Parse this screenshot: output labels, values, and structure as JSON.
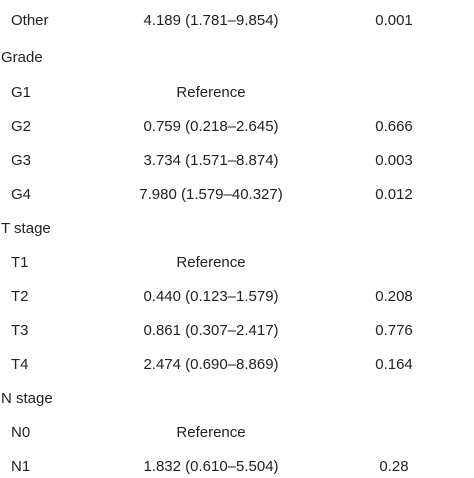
{
  "rows": [
    {
      "type": "item",
      "label": "Other",
      "or": "4.189 (1.781–9.854)",
      "p": "0.001"
    },
    {
      "type": "section",
      "label": "Grade"
    },
    {
      "type": "item",
      "label": "G1",
      "or": "Reference",
      "p": ""
    },
    {
      "type": "item",
      "label": "G2",
      "or": "0.759 (0.218–2.645)",
      "p": "0.666"
    },
    {
      "type": "item",
      "label": "G3",
      "or": "3.734 (1.571–8.874)",
      "p": "0.003"
    },
    {
      "type": "item",
      "label": "G4",
      "or": "7.980 (1.579–40.327)",
      "p": "0.012"
    },
    {
      "type": "section",
      "label": "T stage"
    },
    {
      "type": "item",
      "label": "T1",
      "or": "Reference",
      "p": ""
    },
    {
      "type": "item",
      "label": "T2",
      "or": "0.440 (0.123–1.579)",
      "p": "0.208"
    },
    {
      "type": "item",
      "label": "T3",
      "or": "0.861 (0.307–2.417)",
      "p": "0.776"
    },
    {
      "type": "item",
      "label": "T4",
      "or": "2.474 (0.690–8.869)",
      "p": "0.164"
    },
    {
      "type": "section",
      "label": "N stage"
    },
    {
      "type": "item",
      "label": "N0",
      "or": "Reference",
      "p": ""
    },
    {
      "type": "item",
      "label": "N1",
      "or": "1.832 (0.610–5.504)",
      "p": "0.28"
    }
  ]
}
